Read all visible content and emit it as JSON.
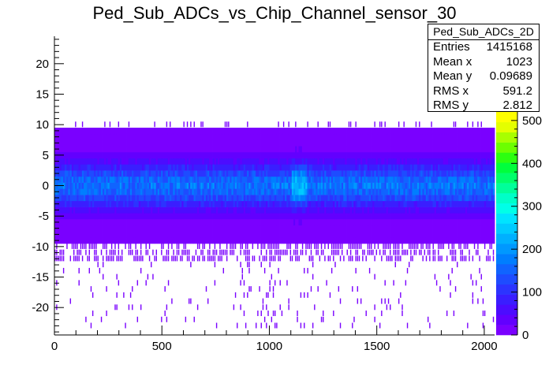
{
  "chart_data": {
    "type": "heatmap",
    "title": "Ped_Sub_ADCs_vs_Chip_Channel_sensor_30",
    "xlabel": "",
    "ylabel": "",
    "xlim": [
      0,
      2048
    ],
    "ylim": [
      -24.5,
      24.5
    ],
    "x_ticks": [
      0,
      500,
      1000,
      1500,
      2000
    ],
    "y_ticks": [
      -20,
      -15,
      -10,
      -5,
      0,
      5,
      10,
      15,
      20
    ],
    "colorbar": {
      "min": 0,
      "max": 520,
      "ticks": [
        0,
        100,
        200,
        300,
        400,
        500
      ]
    },
    "grid": false,
    "stats": {
      "name": "Ped_Sub_ADCs_2D",
      "entries": {
        "label": "Entries",
        "value": "1415168"
      },
      "mean_x": {
        "label": "Mean x",
        "value": "1023"
      },
      "mean_y": {
        "label": "Mean y",
        "value": "0.09689"
      },
      "rms_x": {
        "label": "RMS x",
        "value": "591.2"
      },
      "rms_y": {
        "label": "RMS y",
        "value": "2.812"
      }
    },
    "colors": {
      "palette": [
        "#7a00ff",
        "#6200ff",
        "#4c0cff",
        "#3a1eff",
        "#2c34ff",
        "#1e4cff",
        "#1064ff",
        "#007eff",
        "#0098ff",
        "#00b0ff",
        "#00cbff",
        "#00e4ff",
        "#00ffe8",
        "#00ffc8",
        "#00ff9a",
        "#00ff6a",
        "#00ff3c",
        "#2cff10",
        "#6cff00",
        "#a8ff00",
        "#e4ff00",
        "#ffff00"
      ]
    }
  }
}
